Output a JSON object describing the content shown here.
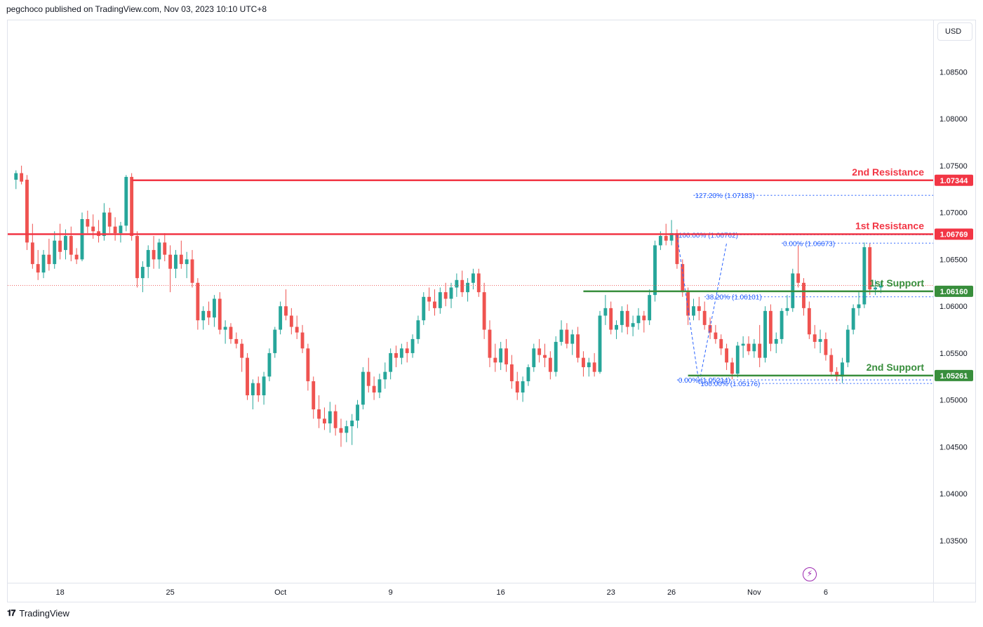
{
  "header": {
    "publisher_text": "pegchoco published on TradingView.com, Nov 03, 2023 10:10 UTC+8"
  },
  "currency_button": {
    "label": "USD"
  },
  "footer": {
    "brand": "TradingView",
    "logo_icon": "tradingview-logo-icon"
  },
  "colors": {
    "up": "#26a69a",
    "down": "#ef5350",
    "resistance": "#f23645",
    "support": "#388e3c",
    "fib": "#2962ff",
    "grid_text": "#131722"
  },
  "chart_data": {
    "type": "candlestick",
    "title": "",
    "xlabel": "",
    "ylabel": "",
    "currency": "USD",
    "ylim": [
      1.0305,
      1.0905
    ],
    "y_ticks": [
      1.035,
      1.04,
      1.045,
      1.05,
      1.055,
      1.06,
      1.065,
      1.07,
      1.075,
      1.08,
      1.085
    ],
    "y_tick_labels": [
      "1.03500",
      "1.04000",
      "1.04500",
      "1.05000",
      "1.05500",
      "1.06000",
      "1.06500",
      "1.07000",
      "1.07500",
      "1.08000",
      "1.08500"
    ],
    "x_ticks": [
      {
        "index": 8,
        "label": "18"
      },
      {
        "index": 28,
        "label": "25"
      },
      {
        "index": 48,
        "label": "Oct"
      },
      {
        "index": 68,
        "label": "9"
      },
      {
        "index": 88,
        "label": "16"
      },
      {
        "index": 108,
        "label": "23"
      },
      {
        "index": 119,
        "label": "26"
      },
      {
        "index": 134,
        "label": "Nov"
      },
      {
        "index": 147,
        "label": "6"
      }
    ],
    "x_index_range": [
      -1.5,
      166.5
    ],
    "ohlc": [
      [
        1.0735,
        1.0745,
        1.0725,
        1.0742
      ],
      [
        1.0742,
        1.075,
        1.073,
        1.0733
      ],
      [
        1.0735,
        1.074,
        1.066,
        1.0668
      ],
      [
        1.0668,
        1.0688,
        1.064,
        1.0645
      ],
      [
        1.0645,
        1.066,
        1.0628,
        1.0636
      ],
      [
        1.0636,
        1.066,
        1.063,
        1.0655
      ],
      [
        1.0655,
        1.0672,
        1.0638,
        1.0645
      ],
      [
        1.0645,
        1.068,
        1.064,
        1.067
      ],
      [
        1.067,
        1.0688,
        1.065,
        1.0658
      ],
      [
        1.066,
        1.0682,
        1.065,
        1.0675
      ],
      [
        1.0675,
        1.0685,
        1.0648,
        1.0655
      ],
      [
        1.0655,
        1.0662,
        1.0645,
        1.065
      ],
      [
        1.065,
        1.07,
        1.0648,
        1.0693
      ],
      [
        1.0693,
        1.0702,
        1.0678,
        1.0685
      ],
      [
        1.0685,
        1.0698,
        1.0672,
        1.068
      ],
      [
        1.068,
        1.0692,
        1.0668,
        1.0675
      ],
      [
        1.0675,
        1.071,
        1.067,
        1.07
      ],
      [
        1.07,
        1.0705,
        1.0678,
        1.0685
      ],
      [
        1.0685,
        1.0695,
        1.067,
        1.0678
      ],
      [
        1.0678,
        1.069,
        1.0668,
        1.0686
      ],
      [
        1.0686,
        1.074,
        1.068,
        1.0738
      ],
      [
        1.0738,
        1.0742,
        1.067,
        1.0675
      ],
      [
        1.0675,
        1.068,
        1.062,
        1.063
      ],
      [
        1.063,
        1.0648,
        1.0615,
        1.0642
      ],
      [
        1.0642,
        1.0665,
        1.063,
        1.066
      ],
      [
        1.066,
        1.0675,
        1.064,
        1.065
      ],
      [
        1.065,
        1.0672,
        1.064,
        1.0668
      ],
      [
        1.0668,
        1.0678,
        1.0648,
        1.0655
      ],
      [
        1.0655,
        1.0665,
        1.0615,
        1.064
      ],
      [
        1.064,
        1.066,
        1.063,
        1.0655
      ],
      [
        1.0655,
        1.067,
        1.064,
        1.0645
      ],
      [
        1.0645,
        1.0658,
        1.063,
        1.065
      ],
      [
        1.065,
        1.066,
        1.062,
        1.0625
      ],
      [
        1.0625,
        1.063,
        1.0575,
        1.0585
      ],
      [
        1.0585,
        1.06,
        1.0575,
        1.0595
      ],
      [
        1.0595,
        1.0605,
        1.058,
        1.0588
      ],
      [
        1.0588,
        1.0612,
        1.0578,
        1.0608
      ],
      [
        1.0608,
        1.0615,
        1.057,
        1.0575
      ],
      [
        1.0575,
        1.0585,
        1.056,
        1.0578
      ],
      [
        1.0578,
        1.0582,
        1.056,
        1.0565
      ],
      [
        1.0565,
        1.0572,
        1.0555,
        1.056
      ],
      [
        1.056,
        1.0565,
        1.053,
        1.0545
      ],
      [
        1.0545,
        1.055,
        1.05,
        1.0505
      ],
      [
        1.0505,
        1.0522,
        1.049,
        1.0518
      ],
      [
        1.0518,
        1.0525,
        1.0498,
        1.0505
      ],
      [
        1.0505,
        1.053,
        1.0495,
        1.0525
      ],
      [
        1.0525,
        1.0555,
        1.052,
        1.055
      ],
      [
        1.055,
        1.0578,
        1.0545,
        1.0575
      ],
      [
        1.0575,
        1.0605,
        1.057,
        1.06
      ],
      [
        1.06,
        1.0618,
        1.0585,
        1.059
      ],
      [
        1.059,
        1.0598,
        1.057,
        1.0578
      ],
      [
        1.0578,
        1.059,
        1.0565,
        1.0572
      ],
      [
        1.0572,
        1.058,
        1.055,
        1.0555
      ],
      [
        1.0555,
        1.056,
        1.051,
        1.052
      ],
      [
        1.052,
        1.0525,
        1.048,
        1.049
      ],
      [
        1.049,
        1.0505,
        1.047,
        1.048
      ],
      [
        1.048,
        1.0492,
        1.0468,
        1.0475
      ],
      [
        1.0475,
        1.0498,
        1.0465,
        1.0488
      ],
      [
        1.0488,
        1.0495,
        1.0462,
        1.047
      ],
      [
        1.047,
        1.048,
        1.045,
        1.0465
      ],
      [
        1.0465,
        1.0478,
        1.0455,
        1.0472
      ],
      [
        1.0472,
        1.0485,
        1.0452,
        1.0478
      ],
      [
        1.0478,
        1.05,
        1.047,
        1.0495
      ],
      [
        1.0495,
        1.0535,
        1.049,
        1.053
      ],
      [
        1.053,
        1.0545,
        1.0508,
        1.0515
      ],
      [
        1.0515,
        1.0525,
        1.05,
        1.0508
      ],
      [
        1.0508,
        1.0528,
        1.0502,
        1.0522
      ],
      [
        1.0522,
        1.054,
        1.0512,
        1.053
      ],
      [
        1.053,
        1.0555,
        1.0522,
        1.055
      ],
      [
        1.055,
        1.0558,
        1.0535,
        1.0545
      ],
      [
        1.0545,
        1.056,
        1.0538,
        1.0555
      ],
      [
        1.0555,
        1.0562,
        1.054,
        1.055
      ],
      [
        1.055,
        1.057,
        1.0545,
        1.0565
      ],
      [
        1.0565,
        1.059,
        1.056,
        1.0585
      ],
      [
        1.0585,
        1.0615,
        1.058,
        1.061
      ],
      [
        1.061,
        1.062,
        1.0595,
        1.0605
      ],
      [
        1.0605,
        1.0618,
        1.059,
        1.0598
      ],
      [
        1.0598,
        1.062,
        1.0592,
        1.0615
      ],
      [
        1.0615,
        1.0625,
        1.06,
        1.0608
      ],
      [
        1.0608,
        1.0625,
        1.0598,
        1.062
      ],
      [
        1.062,
        1.0635,
        1.061,
        1.0628
      ],
      [
        1.0628,
        1.0638,
        1.061,
        1.0615
      ],
      [
        1.0615,
        1.063,
        1.0605,
        1.0625
      ],
      [
        1.0625,
        1.064,
        1.0618,
        1.0635
      ],
      [
        1.0635,
        1.064,
        1.061,
        1.0615
      ],
      [
        1.0615,
        1.0625,
        1.0565,
        1.0575
      ],
      [
        1.0575,
        1.0585,
        1.0535,
        1.0545
      ],
      [
        1.0545,
        1.056,
        1.053,
        1.054
      ],
      [
        1.054,
        1.0562,
        1.0532,
        1.0555
      ],
      [
        1.0555,
        1.0565,
        1.053,
        1.0538
      ],
      [
        1.0538,
        1.0548,
        1.0512,
        1.052
      ],
      [
        1.052,
        1.053,
        1.05,
        1.0508
      ],
      [
        1.0508,
        1.0525,
        1.0498,
        1.052
      ],
      [
        1.052,
        1.0538,
        1.0515,
        1.0535
      ],
      [
        1.0535,
        1.056,
        1.053,
        1.0555
      ],
      [
        1.0555,
        1.0565,
        1.054,
        1.0548
      ],
      [
        1.0548,
        1.056,
        1.0535,
        1.0545
      ],
      [
        1.0545,
        1.0552,
        1.0522,
        1.053
      ],
      [
        1.053,
        1.0568,
        1.0525,
        1.0562
      ],
      [
        1.0562,
        1.0585,
        1.0558,
        1.0575
      ],
      [
        1.0575,
        1.0582,
        1.0555,
        1.056
      ],
      [
        1.056,
        1.0575,
        1.0548,
        1.057
      ],
      [
        1.057,
        1.0578,
        1.054,
        1.0545
      ],
      [
        1.0545,
        1.0552,
        1.0525,
        1.0535
      ],
      [
        1.0535,
        1.0545,
        1.0525,
        1.054
      ],
      [
        1.054,
        1.055,
        1.0525,
        1.053
      ],
      [
        1.053,
        1.0595,
        1.0528,
        1.059
      ],
      [
        1.059,
        1.0612,
        1.058,
        1.0598
      ],
      [
        1.0598,
        1.0605,
        1.057,
        1.0575
      ],
      [
        1.0575,
        1.0585,
        1.0565,
        1.058
      ],
      [
        1.058,
        1.06,
        1.0572,
        1.0595
      ],
      [
        1.0595,
        1.0602,
        1.057,
        1.0578
      ],
      [
        1.0578,
        1.059,
        1.0568,
        1.0582
      ],
      [
        1.0582,
        1.0598,
        1.0575,
        1.059
      ],
      [
        1.059,
        1.0595,
        1.0572,
        1.0585
      ],
      [
        1.0585,
        1.0618,
        1.058,
        1.0612
      ],
      [
        1.0612,
        1.067,
        1.0605,
        1.0665
      ],
      [
        1.0665,
        1.068,
        1.066,
        1.0675
      ],
      [
        1.0675,
        1.0688,
        1.0665,
        1.067
      ],
      [
        1.067,
        1.0692,
        1.0665,
        1.0678
      ],
      [
        1.0678,
        1.0682,
        1.064,
        1.0645
      ],
      [
        1.0645,
        1.065,
        1.061,
        1.0615
      ],
      [
        1.0615,
        1.062,
        1.058,
        1.059
      ],
      [
        1.059,
        1.0608,
        1.0585,
        1.06
      ],
      [
        1.06,
        1.061,
        1.0585,
        1.0595
      ],
      [
        1.0595,
        1.0605,
        1.0575,
        1.058
      ],
      [
        1.058,
        1.0588,
        1.0565,
        1.0572
      ],
      [
        1.0572,
        1.058,
        1.056,
        1.0565
      ],
      [
        1.0565,
        1.057,
        1.0548,
        1.0555
      ],
      [
        1.0555,
        1.056,
        1.0532,
        1.054
      ],
      [
        1.054,
        1.0545,
        1.0522,
        1.0528
      ],
      [
        1.0528,
        1.0562,
        1.0524,
        1.0558
      ],
      [
        1.0558,
        1.0568,
        1.0545,
        1.056
      ],
      [
        1.056,
        1.0568,
        1.0548,
        1.0552
      ],
      [
        1.0552,
        1.0565,
        1.0545,
        1.056
      ],
      [
        1.056,
        1.058,
        1.0535,
        1.0545
      ],
      [
        1.0545,
        1.06,
        1.054,
        1.0595
      ],
      [
        1.0595,
        1.0602,
        1.0552,
        1.056
      ],
      [
        1.056,
        1.0572,
        1.055,
        1.0565
      ],
      [
        1.0565,
        1.0598,
        1.056,
        1.0595
      ],
      [
        1.0595,
        1.0612,
        1.059,
        1.0598
      ],
      [
        1.0598,
        1.064,
        1.0594,
        1.0635
      ],
      [
        1.0635,
        1.0665,
        1.062,
        1.0625
      ],
      [
        1.0625,
        1.063,
        1.059,
        1.0598
      ],
      [
        1.0598,
        1.0605,
        1.0565,
        1.057
      ],
      [
        1.057,
        1.058,
        1.0555,
        1.0562
      ],
      [
        1.0562,
        1.0575,
        1.055,
        1.0565
      ],
      [
        1.0565,
        1.0572,
        1.0542,
        1.0548
      ],
      [
        1.0548,
        1.0555,
        1.0525,
        1.053
      ],
      [
        1.053,
        1.0535,
        1.052,
        1.0525
      ],
      [
        1.0525,
        1.0545,
        1.0518,
        1.054
      ],
      [
        1.054,
        1.058,
        1.0535,
        1.0575
      ],
      [
        1.0575,
        1.0602,
        1.057,
        1.0598
      ],
      [
        1.0598,
        1.0615,
        1.059,
        1.0602
      ],
      [
        1.0602,
        1.0668,
        1.0598,
        1.0663
      ],
      [
        1.0663,
        1.0667,
        1.0612,
        1.0618
      ],
      [
        1.0618,
        1.0628,
        1.0612,
        1.062
      ],
      [
        1.062,
        1.0626,
        1.0614,
        1.0622
      ]
    ],
    "annotations": [
      {
        "type": "hline",
        "label": "2nd Resistance",
        "value": 1.07344,
        "price_label": "1.07344",
        "color": "resistance",
        "from_index": 21
      },
      {
        "type": "hline",
        "label": "1st Resistance",
        "value": 1.06769,
        "price_label": "1.06769",
        "color": "resistance",
        "from_index": -1.5
      },
      {
        "type": "hline",
        "label": "1st Support",
        "value": 1.0616,
        "price_label": "1.06160",
        "color": "support",
        "from_index": 103
      },
      {
        "type": "hline",
        "label": "2nd Support",
        "value": 1.05261,
        "price_label": "1.05261",
        "color": "support",
        "from_index": 122
      }
    ],
    "fib_levels": [
      {
        "label": "127.20% (1.07183)",
        "value": 1.07183,
        "from_index": 123
      },
      {
        "label": "100.00% (1.06762)",
        "value": 1.06762,
        "from_index": 120
      },
      {
        "label": "0.00% (1.06673)",
        "value": 1.06673,
        "from_index": 139
      },
      {
        "label": "38.20% (1.06101)",
        "value": 1.06101,
        "from_index": 125
      },
      {
        "label": "0.00% (1.05214)",
        "value": 1.05214,
        "from_index": 120
      },
      {
        "label": "100.00% (1.05176)",
        "value": 1.05176,
        "from_index": 124
      }
    ],
    "last_price": 1.06222
  }
}
